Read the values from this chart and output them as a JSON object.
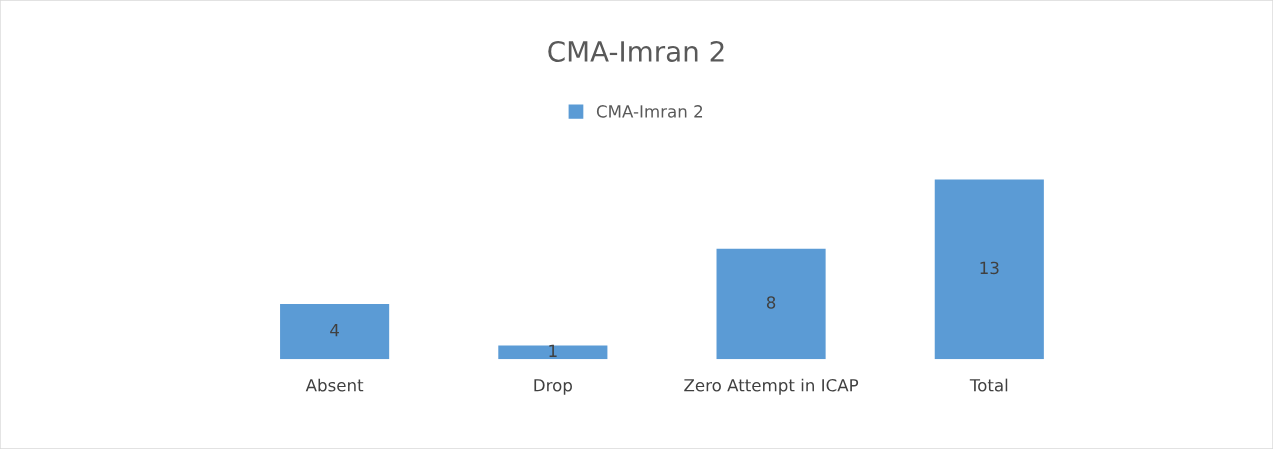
{
  "chart_data": {
    "type": "bar",
    "title": "CMA-Imran 2",
    "categories": [
      "Absent",
      "Drop",
      "Zero Attempt in ICAP",
      "Total"
    ],
    "series": [
      {
        "name": "CMA-Imran 2",
        "color": "#5b9bd5",
        "values": [
          4,
          1,
          8,
          13
        ]
      }
    ],
    "tick_labels": "x",
    "data_labels": true,
    "legend": "top",
    "grid": false
  }
}
